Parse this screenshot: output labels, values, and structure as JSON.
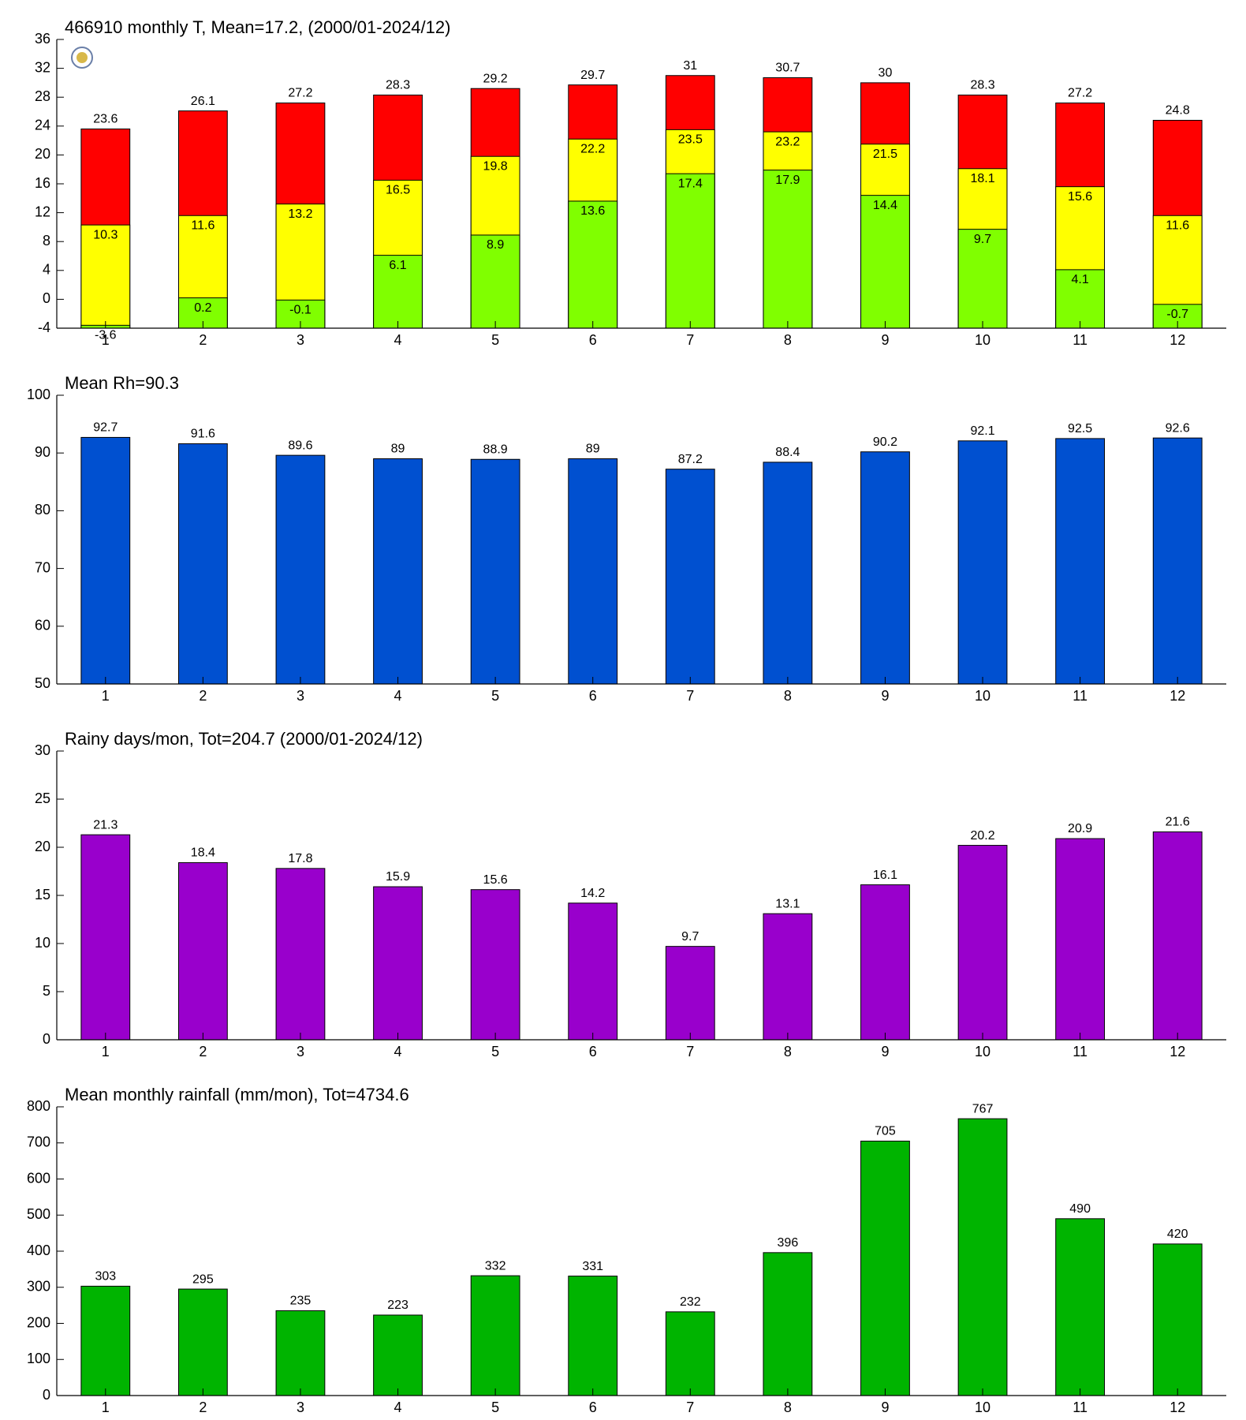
{
  "chart_data": [
    {
      "type": "bar",
      "barmode": "overlay",
      "title": "466910 monthly T, Mean=17.2, (2000/01-2024/12)",
      "categories": [
        "1",
        "2",
        "3",
        "4",
        "5",
        "6",
        "7",
        "8",
        "9",
        "10",
        "11",
        "12"
      ],
      "series": [
        {
          "color": "#ff0000",
          "values": [
            23.6,
            26.1,
            27.2,
            28.3,
            29.2,
            29.7,
            31,
            30.7,
            30,
            28.3,
            27.2,
            24.8
          ]
        },
        {
          "color": "#ffff00",
          "values": [
            10.3,
            11.6,
            13.2,
            16.5,
            19.8,
            22.2,
            23.5,
            23.2,
            21.5,
            18.1,
            15.6,
            11.6
          ]
        },
        {
          "color": "#80ff00",
          "values": [
            -3.6,
            0.2,
            -0.1,
            6.1,
            8.9,
            13.6,
            17.4,
            17.9,
            14.4,
            9.7,
            4.1,
            -0.7
          ]
        }
      ],
      "ylim": [
        -4,
        36
      ],
      "yticks": [
        -4,
        0,
        4,
        8,
        12,
        16,
        20,
        24,
        28,
        32,
        36
      ]
    },
    {
      "type": "bar",
      "title": "Mean Rh=90.3",
      "categories": [
        "1",
        "2",
        "3",
        "4",
        "5",
        "6",
        "7",
        "8",
        "9",
        "10",
        "11",
        "12"
      ],
      "series": [
        {
          "color": "#0050d0",
          "values": [
            92.7,
            91.6,
            89.6,
            89,
            88.9,
            89,
            87.2,
            88.4,
            90.2,
            92.1,
            92.5,
            92.6
          ]
        }
      ],
      "ylim": [
        50,
        100
      ],
      "yticks": [
        50,
        60,
        70,
        80,
        90,
        100
      ]
    },
    {
      "type": "bar",
      "title": "Rainy days/mon, Tot=204.7 (2000/01-2024/12)",
      "categories": [
        "1",
        "2",
        "3",
        "4",
        "5",
        "6",
        "7",
        "8",
        "9",
        "10",
        "11",
        "12"
      ],
      "series": [
        {
          "color": "#9900cc",
          "values": [
            21.3,
            18.4,
            17.8,
            15.9,
            15.6,
            14.2,
            9.7,
            13.1,
            16.1,
            20.2,
            20.9,
            21.6
          ]
        }
      ],
      "ylim": [
        0,
        30
      ],
      "yticks": [
        0,
        5,
        10,
        15,
        20,
        25,
        30
      ]
    },
    {
      "type": "bar",
      "title": "Mean monthly rainfall (mm/mon), Tot=4734.6",
      "categories": [
        "1",
        "2",
        "3",
        "4",
        "5",
        "6",
        "7",
        "8",
        "9",
        "10",
        "11",
        "12"
      ],
      "series": [
        {
          "color": "#00b400",
          "values": [
            303,
            295,
            235,
            223,
            332,
            331,
            232,
            396,
            705,
            767,
            490,
            420
          ]
        }
      ],
      "ylim": [
        0,
        800
      ],
      "yticks": [
        0,
        100,
        200,
        300,
        400,
        500,
        600,
        700,
        800
      ]
    }
  ]
}
